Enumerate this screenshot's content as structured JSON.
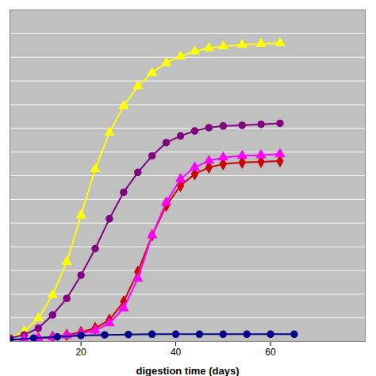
{
  "chart_data": {
    "type": "line",
    "xlabel": "digestion time (days)",
    "xlim": [
      5,
      80
    ],
    "xticks": [
      20,
      40,
      60
    ],
    "ylim": [
      0,
      1.0
    ],
    "yticks": [
      0,
      0.07142857142857142,
      0.14285714285714285,
      0.21428571428571427,
      0.2857142857142857,
      0.35714285714285715,
      0.42857142857142855,
      0.5,
      0.5714285714285714,
      0.6428571428571428,
      0.7142857142857143,
      0.7857142857142857,
      0.8571428571428571,
      0.9285714285714286,
      1.0
    ],
    "grid": true,
    "tick_labels": "x",
    "series": [
      {
        "color": "#ffff00",
        "marker": "triangle",
        "x": [
          5,
          8,
          11,
          14,
          17,
          20,
          23,
          26,
          29,
          32,
          35,
          38,
          41,
          44,
          47,
          50,
          54,
          58,
          62
        ],
        "values": [
          0.01,
          0.03,
          0.07,
          0.14,
          0.24,
          0.38,
          0.52,
          0.63,
          0.71,
          0.77,
          0.81,
          0.84,
          0.86,
          0.875,
          0.885,
          0.89,
          0.895,
          0.898,
          0.9
        ]
      },
      {
        "color": "#800080",
        "marker": "circle",
        "x": [
          5,
          8,
          11,
          14,
          17,
          20,
          23,
          26,
          29,
          32,
          35,
          38,
          41,
          44,
          47,
          50,
          54,
          58,
          62
        ],
        "values": [
          0.01,
          0.02,
          0.04,
          0.08,
          0.13,
          0.2,
          0.28,
          0.37,
          0.45,
          0.51,
          0.56,
          0.6,
          0.62,
          0.635,
          0.645,
          0.65,
          0.652,
          0.655,
          0.658
        ]
      },
      {
        "color": "#cc0000",
        "marker": "diamond",
        "x": [
          5,
          8,
          11,
          14,
          17,
          20,
          23,
          26,
          29,
          32,
          35,
          38,
          41,
          44,
          47,
          50,
          54,
          58,
          62
        ],
        "values": [
          0.005,
          0.007,
          0.01,
          0.014,
          0.02,
          0.028,
          0.04,
          0.065,
          0.12,
          0.21,
          0.32,
          0.41,
          0.47,
          0.505,
          0.525,
          0.535,
          0.54,
          0.542,
          0.544
        ]
      },
      {
        "color": "#ff00ff",
        "marker": "triangle",
        "x": [
          5,
          8,
          11,
          14,
          17,
          20,
          23,
          26,
          29,
          32,
          35,
          38,
          41,
          44,
          47,
          50,
          54,
          58,
          62
        ],
        "values": [
          0.005,
          0.007,
          0.01,
          0.013,
          0.018,
          0.024,
          0.033,
          0.055,
          0.1,
          0.19,
          0.32,
          0.42,
          0.49,
          0.525,
          0.545,
          0.555,
          0.56,
          0.562,
          0.565
        ]
      },
      {
        "color": "#00008b",
        "marker": "circle",
        "x": [
          5,
          10,
          15,
          20,
          25,
          30,
          35,
          40,
          45,
          50,
          55,
          60,
          65
        ],
        "values": [
          0.005,
          0.01,
          0.014,
          0.018,
          0.02,
          0.021,
          0.022,
          0.022,
          0.022,
          0.022,
          0.022,
          0.022,
          0.022
        ]
      }
    ]
  }
}
